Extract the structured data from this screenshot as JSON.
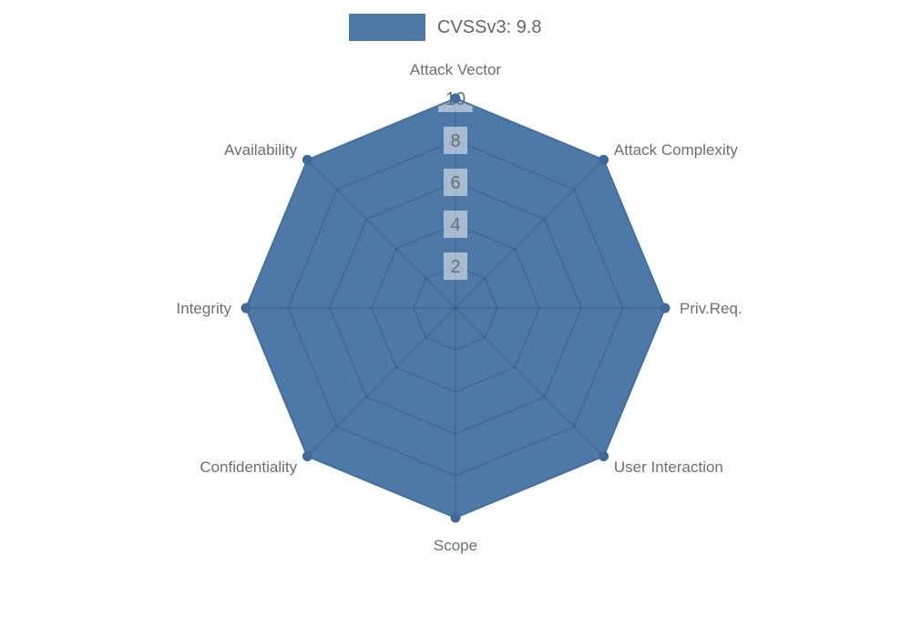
{
  "legend": {
    "position": "top",
    "items": [
      {
        "label": "CVSSv3: 9.8",
        "color": "#4E79A7"
      }
    ]
  },
  "chart_data": {
    "type": "radar",
    "title": "",
    "indicators": [
      "Attack Vector",
      "Attack Complexity",
      "Priv.Req.",
      "User Interaction",
      "Scope",
      "Confidentiality",
      "Integrity",
      "Availability"
    ],
    "max": 10,
    "tick_interval": 2,
    "tick_labels": [
      "2",
      "4",
      "6",
      "8",
      "10"
    ],
    "series": [
      {
        "name": "CVSSv3: 9.8",
        "values": [
          10,
          10,
          10,
          10,
          10,
          10,
          10,
          10
        ]
      }
    ],
    "grid": true,
    "legend_position": "top-center",
    "style": {
      "fill_color": "#4E79A7",
      "stroke_color": "#44709F",
      "marker_color": "#41699A",
      "grid_line_color": "rgba(40,55,75,0.28)",
      "tick_box_color": "rgba(255,255,255,0.5)",
      "tick_text_color": "#656E79",
      "axis_label_color": "#6B6F76",
      "legend_text_color": "#666666"
    }
  }
}
